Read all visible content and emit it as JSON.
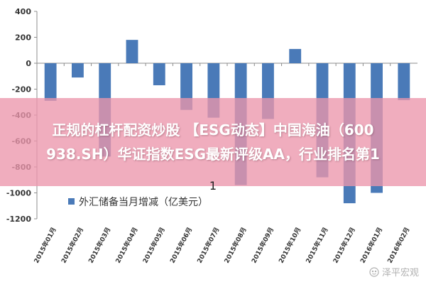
{
  "chart_data": {
    "type": "bar",
    "categories": [
      "2015年01月",
      "2015年02月",
      "2015年03月",
      "2015年04月",
      "2015年05月",
      "2015年06月",
      "2015年07月",
      "2015年08月",
      "2015年09月",
      "2015年10月",
      "2015年11月",
      "2015年12月",
      "2016年01月",
      "2016年02月"
    ],
    "series": [
      {
        "name": "外汇储备当月增减（亿美元）",
        "values": [
          -290,
          -110,
          -720,
          180,
          -170,
          -360,
          -420,
          -940,
          -430,
          110,
          -880,
          -1080,
          -1000,
          -285
        ]
      }
    ],
    "ylim": [
      -1200,
      400
    ],
    "yticks": [
      400,
      200,
      0,
      -200,
      -400,
      -600,
      -800,
      -1000,
      -1200
    ],
    "grid": false,
    "legend_position": "bottom-left",
    "bar_color": "#4a7ab8",
    "axis_color": "#8c8c8c"
  },
  "banner": {
    "line1": "正规的杠杆配资炒股 【ESG动态】中国海油（600",
    "line2": "938.SH）华证指数ESG最新评级AA，行业排名第1",
    "line3": "1",
    "color": "#ec96ac"
  },
  "watermark": {
    "icon": "paw-icon",
    "text": "泽平宏观"
  }
}
